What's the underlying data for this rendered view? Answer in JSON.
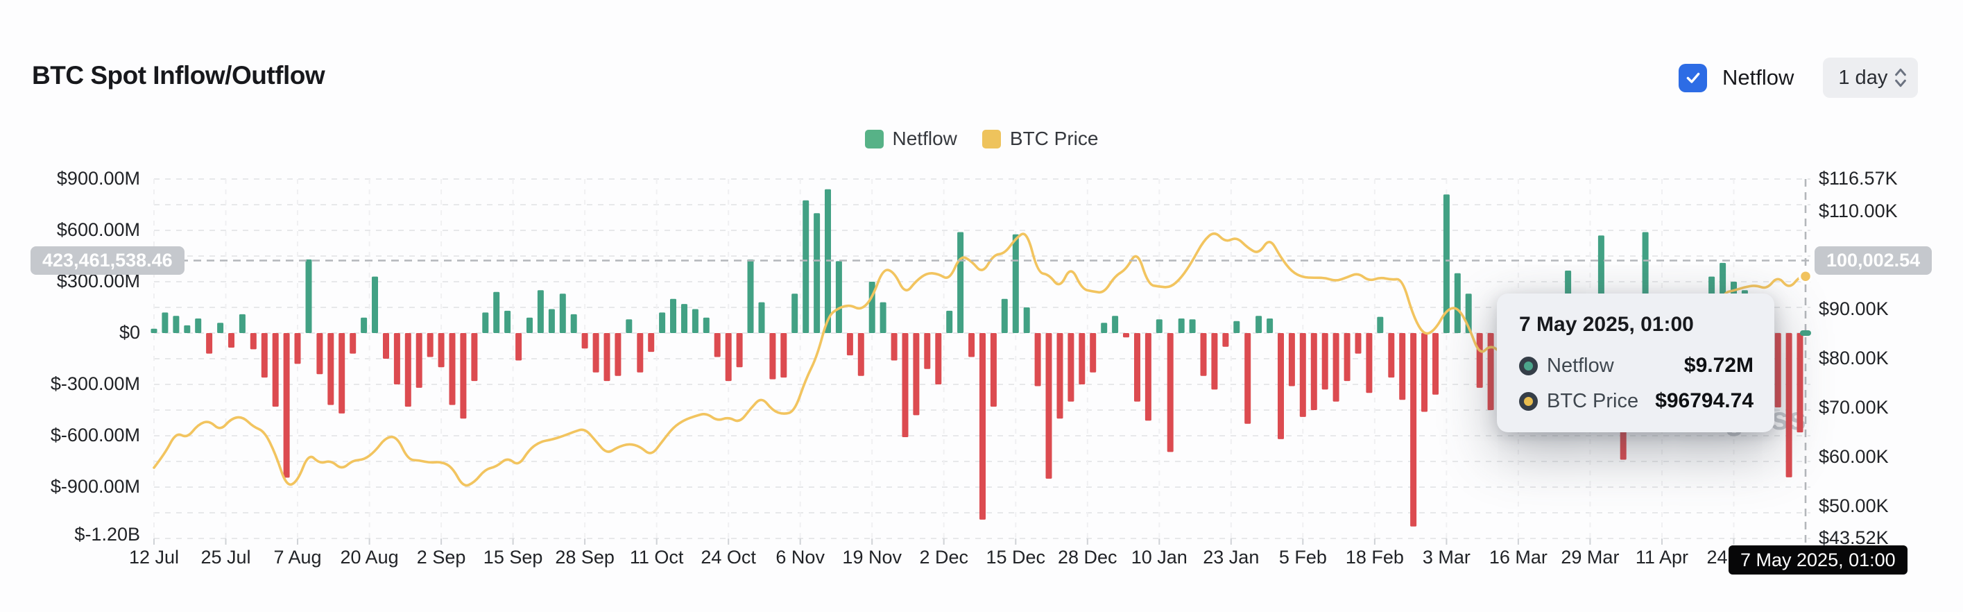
{
  "header": {
    "title": "BTC Spot Inflow/Outflow",
    "netflow_toggle_label": "Netflow",
    "netflow_toggle_checked": true,
    "interval_select": "1 day"
  },
  "legend": [
    {
      "label": "Netflow",
      "color": "#57b287"
    },
    {
      "label": "BTC Price",
      "color": "#eec35c"
    }
  ],
  "tooltip": {
    "title": "7 May 2025, 01:00",
    "rows": [
      {
        "label": "Netflow",
        "value": "$9.72M",
        "color": "#4ca58b"
      },
      {
        "label": "BTC Price",
        "value": "$96794.74",
        "color": "#e8bd4f"
      }
    ]
  },
  "crosshair": {
    "left_value_badge": "423,461,538.46",
    "right_value_badge": "100,002.54",
    "date_pill": "7 May 2025, 01:00"
  },
  "watermark": "coinglass",
  "colors": {
    "bar_positive": "#42a184",
    "bar_negative": "#dc4b50",
    "price_line": "#f2c45f",
    "accent_blue": "#2d6ce5",
    "grid": "#e7e8ea",
    "crosshair": "#b4b7bb"
  },
  "chart_data": {
    "type": [
      "bar",
      "line"
    ],
    "title": "BTC Spot Inflow/Outflow",
    "legend_position": "top-center",
    "grid": "dashed horizontal every 150M, faint dashed vertical at date ticks",
    "left_axis": {
      "series": "Netflow",
      "unit": "USD",
      "labels": [
        "$900.00M",
        "$600.00M",
        "$300.00M",
        "$0",
        "$-300.00M",
        "$-600.00M",
        "$-900.00M",
        "$-1.20B"
      ],
      "values_musd": [
        900,
        600,
        300,
        0,
        -300,
        -600,
        -900,
        -1200
      ],
      "range_musd": [
        -1200,
        900
      ]
    },
    "right_axis": {
      "series": "BTC Price",
      "unit": "USD",
      "labels": [
        "$116.57K",
        "$110.00K",
        "$100.00K",
        "$90.00K",
        "$80.00K",
        "$70.00K",
        "$60.00K",
        "$50.00K",
        "$43.52K"
      ],
      "values_kusd": [
        116.57,
        110,
        100,
        90,
        80,
        70,
        60,
        50,
        43.52
      ],
      "range_kusd": [
        43.52,
        116.57
      ]
    },
    "x_axis": {
      "start_date": "2024-07-12",
      "end_date": "2025-05-07",
      "total_days": 299,
      "tick_labels": [
        "12 Jul",
        "25 Jul",
        "7 Aug",
        "20 Aug",
        "2 Sep",
        "15 Sep",
        "28 Sep",
        "11 Oct",
        "24 Oct",
        "6 Nov",
        "19 Nov",
        "2 Dec",
        "15 Dec",
        "28 Dec",
        "10 Jan",
        "23 Jan",
        "5 Feb",
        "18 Feb",
        "3 Mar",
        "16 Mar",
        "29 Mar",
        "11 Apr",
        "24 Apr"
      ],
      "tick_day_offsets": [
        0,
        13,
        26,
        39,
        52,
        65,
        78,
        91,
        104,
        117,
        130,
        143,
        156,
        169,
        182,
        195,
        208,
        221,
        234,
        247,
        260,
        273,
        286
      ]
    },
    "series": [
      {
        "name": "Netflow",
        "type": "bar",
        "unit": "USD millions",
        "color_positive": "#42a184",
        "color_negative": "#dc4b50"
      },
      {
        "name": "BTC Price",
        "type": "line",
        "unit": "USD thousands",
        "color": "#f2c45f"
      }
    ],
    "hovered_point": {
      "date": "7 May 2025, 01:00",
      "netflow": "$9.72M",
      "btc_price": 96794.74
    },
    "columns": [
      "day_offset_from_2024-07-12",
      "netflow_musd",
      "btc_price_kusd"
    ],
    "sampling_note": "daily data approximated at 2-day resolution",
    "points": [
      [
        0,
        25,
        57.9
      ],
      [
        2,
        120,
        60.8
      ],
      [
        4,
        100,
        65.1
      ],
      [
        6,
        45,
        63.9
      ],
      [
        8,
        85,
        66.7
      ],
      [
        10,
        -120,
        67.5
      ],
      [
        12,
        60,
        65.4
      ],
      [
        14,
        -85,
        67.9
      ],
      [
        16,
        110,
        68.3
      ],
      [
        18,
        -95,
        66.2
      ],
      [
        20,
        -260,
        65.3
      ],
      [
        22,
        -430,
        60.7
      ],
      [
        24,
        -845,
        54.0
      ],
      [
        26,
        -180,
        55.1
      ],
      [
        28,
        430,
        60.9
      ],
      [
        30,
        -240,
        58.7
      ],
      [
        32,
        -420,
        59.4
      ],
      [
        34,
        -470,
        57.5
      ],
      [
        36,
        -120,
        59.4
      ],
      [
        38,
        90,
        59.5
      ],
      [
        40,
        330,
        61.2
      ],
      [
        42,
        -150,
        64.1
      ],
      [
        44,
        -300,
        64.2
      ],
      [
        46,
        -430,
        59.5
      ],
      [
        48,
        -320,
        59.4
      ],
      [
        50,
        -140,
        58.9
      ],
      [
        52,
        -200,
        59.1
      ],
      [
        54,
        -420,
        58.0
      ],
      [
        56,
        -500,
        53.9
      ],
      [
        58,
        -280,
        54.9
      ],
      [
        60,
        120,
        57.6
      ],
      [
        62,
        240,
        58.1
      ],
      [
        64,
        130,
        60.0
      ],
      [
        66,
        -160,
        58.2
      ],
      [
        68,
        90,
        61.7
      ],
      [
        70,
        250,
        63.2
      ],
      [
        72,
        140,
        63.6
      ],
      [
        74,
        230,
        64.3
      ],
      [
        76,
        110,
        65.2
      ],
      [
        78,
        -90,
        65.9
      ],
      [
        80,
        -230,
        63.3
      ],
      [
        82,
        -280,
        60.7
      ],
      [
        84,
        -250,
        62.1
      ],
      [
        86,
        80,
        62.8
      ],
      [
        88,
        -230,
        62.2
      ],
      [
        90,
        -110,
        60.3
      ],
      [
        92,
        120,
        63.2
      ],
      [
        94,
        200,
        66.1
      ],
      [
        96,
        170,
        67.6
      ],
      [
        98,
        140,
        68.4
      ],
      [
        100,
        90,
        69.0
      ],
      [
        102,
        -140,
        67.4
      ],
      [
        104,
        -280,
        68.2
      ],
      [
        106,
        -200,
        67.0
      ],
      [
        108,
        430,
        69.9
      ],
      [
        110,
        180,
        72.3
      ],
      [
        112,
        -270,
        69.5
      ],
      [
        114,
        -260,
        68.7
      ],
      [
        116,
        230,
        69.4
      ],
      [
        118,
        775,
        75.9
      ],
      [
        120,
        700,
        80.4
      ],
      [
        122,
        840,
        88.7
      ],
      [
        124,
        420,
        90.4
      ],
      [
        126,
        -130,
        91.0
      ],
      [
        128,
        -250,
        89.9
      ],
      [
        130,
        300,
        92.3
      ],
      [
        132,
        180,
        98.4
      ],
      [
        134,
        -160,
        97.7
      ],
      [
        136,
        -608,
        93.1
      ],
      [
        138,
        -480,
        95.9
      ],
      [
        140,
        -210,
        97.5
      ],
      [
        142,
        -300,
        97.3
      ],
      [
        144,
        130,
        96.0
      ],
      [
        146,
        590,
        101.1
      ],
      [
        148,
        -140,
        99.9
      ],
      [
        150,
        -1090,
        97.3
      ],
      [
        152,
        -430,
        101.2
      ],
      [
        154,
        200,
        101.4
      ],
      [
        156,
        577,
        104.5
      ],
      [
        158,
        150,
        106.1
      ],
      [
        160,
        -310,
        97.5
      ],
      [
        162,
        -851,
        97.2
      ],
      [
        164,
        -500,
        94.3
      ],
      [
        166,
        -400,
        99.0
      ],
      [
        168,
        -300,
        94.2
      ],
      [
        170,
        -230,
        93.7
      ],
      [
        172,
        60,
        93.4
      ],
      [
        174,
        100,
        96.9
      ],
      [
        176,
        -25,
        98.2
      ],
      [
        178,
        -400,
        102.1
      ],
      [
        180,
        -512,
        95.1
      ],
      [
        182,
        80,
        94.7
      ],
      [
        184,
        -695,
        94.5
      ],
      [
        186,
        85,
        96.5
      ],
      [
        188,
        80,
        99.9
      ],
      [
        190,
        -250,
        104.0
      ],
      [
        192,
        -330,
        106.0
      ],
      [
        194,
        -80,
        103.7
      ],
      [
        196,
        70,
        104.8
      ],
      [
        198,
        -530,
        102.6
      ],
      [
        200,
        100,
        101.3
      ],
      [
        202,
        85,
        104.7
      ],
      [
        204,
        -620,
        100.6
      ],
      [
        206,
        -310,
        97.7
      ],
      [
        208,
        -490,
        96.6
      ],
      [
        210,
        -450,
        96.5
      ],
      [
        212,
        -330,
        96.5
      ],
      [
        214,
        -400,
        95.8
      ],
      [
        216,
        -280,
        96.6
      ],
      [
        218,
        -120,
        97.5
      ],
      [
        220,
        -350,
        95.8
      ],
      [
        222,
        95,
        96.6
      ],
      [
        224,
        -260,
        96.1
      ],
      [
        226,
        -390,
        96.3
      ],
      [
        228,
        -1130,
        88.6
      ],
      [
        230,
        -460,
        84.7
      ],
      [
        232,
        -360,
        86.0
      ],
      [
        234,
        810,
        90.0
      ],
      [
        236,
        350,
        90.6
      ],
      [
        238,
        230,
        86.7
      ],
      [
        240,
        -320,
        80.7
      ],
      [
        242,
        -450,
        82.9
      ],
      [
        244,
        180,
        81.1
      ],
      [
        246,
        130,
        84.3
      ],
      [
        248,
        -180,
        84.0
      ],
      [
        250,
        190,
        86.8
      ],
      [
        252,
        120,
        84.2
      ],
      [
        254,
        90,
        86.1
      ],
      [
        256,
        365,
        87.5
      ],
      [
        258,
        -160,
        87.2
      ],
      [
        260,
        -350,
        82.6
      ],
      [
        262,
        570,
        83.5
      ],
      [
        264,
        -180,
        85.2
      ],
      [
        266,
        -740,
        83.8
      ],
      [
        268,
        -320,
        78.2
      ],
      [
        270,
        590,
        80.6
      ],
      [
        272,
        -210,
        79.6
      ],
      [
        274,
        140,
        85.2
      ],
      [
        276,
        90,
        84.5
      ],
      [
        278,
        -130,
        84.0
      ],
      [
        280,
        110,
        84.9
      ],
      [
        282,
        330,
        85.1
      ],
      [
        284,
        410,
        93.4
      ],
      [
        286,
        300,
        93.9
      ],
      [
        288,
        250,
        94.6
      ],
      [
        290,
        -120,
        95.0
      ],
      [
        292,
        -160,
        94.2
      ],
      [
        294,
        -434,
        96.9
      ],
      [
        296,
        -843,
        94.2
      ],
      [
        298,
        -580,
        96.8
      ],
      [
        299,
        9.72,
        96.79
      ]
    ]
  }
}
